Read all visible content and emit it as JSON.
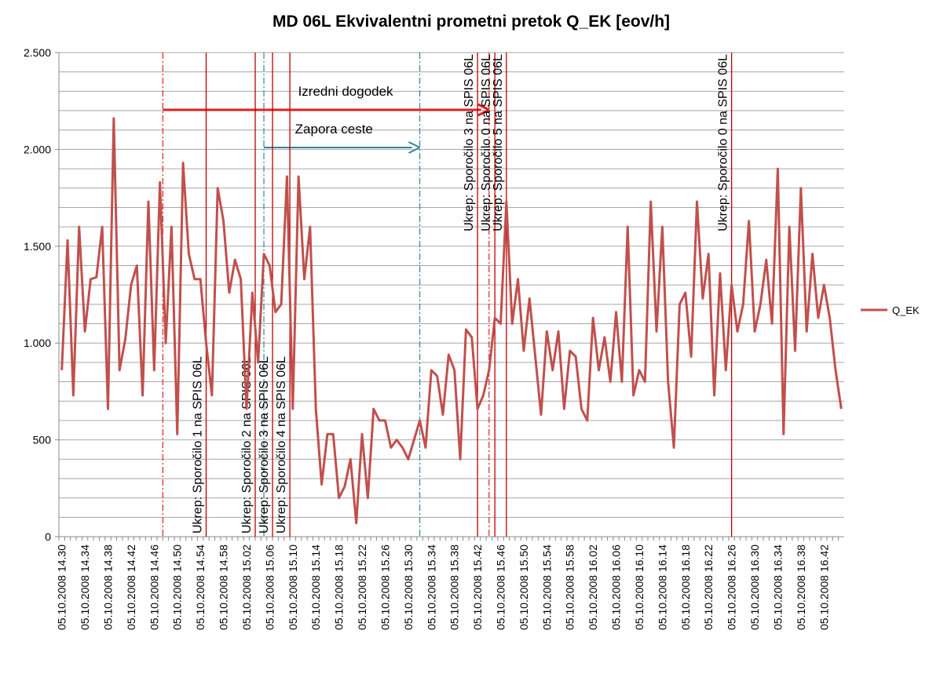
{
  "chart_data": {
    "type": "line",
    "title": "MD 06L Ekvivalentni prometni pretok Q_EK [eov/h]",
    "categories": [
      "05.10.2008 14.30",
      null,
      null,
      null,
      "05.10.2008 14.34",
      null,
      null,
      null,
      "05.10.2008 14.38",
      null,
      null,
      null,
      "05.10.2008 14.42",
      null,
      null,
      null,
      "05.10.2008 14.46",
      null,
      null,
      null,
      "05.10.2008 14.50",
      null,
      null,
      null,
      "05.10.2008 14.54",
      null,
      null,
      null,
      "05.10.2008 14.58",
      null,
      null,
      null,
      "05.10.2008 15.02",
      null,
      null,
      null,
      "05.10.2008 15.06",
      null,
      null,
      null,
      "05.10.2008 15.10",
      null,
      null,
      null,
      "05.10.2008 15.14",
      null,
      null,
      null,
      "05.10.2008 15.18",
      null,
      null,
      null,
      "05.10.2008 15.22",
      null,
      null,
      null,
      "05.10.2008 15.26",
      null,
      null,
      null,
      "05.10.2008 15.30",
      null,
      null,
      null,
      "05.10.2008 15.34",
      null,
      null,
      null,
      "05.10.2008 15.38",
      null,
      null,
      null,
      "05.10.2008 15.42",
      null,
      null,
      null,
      "05.10.2008 15.46",
      null,
      null,
      null,
      "05.10.2008 15.50",
      null,
      null,
      null,
      "05.10.2008 15.54",
      null,
      null,
      null,
      "05.10.2008 15.58",
      null,
      null,
      null,
      "05.10.2008 16.02",
      null,
      null,
      null,
      "05.10.2008 16.06",
      null,
      null,
      null,
      "05.10.2008 16.10",
      null,
      null,
      null,
      "05.10.2008 16.14",
      null,
      null,
      null,
      "05.10.2008 16.18",
      null,
      null,
      null,
      "05.10.2008 16.22",
      null,
      null,
      null,
      "05.10.2008 16.26",
      null,
      null,
      null,
      "05.10.2008 16.30",
      null,
      null,
      null,
      "05.10.2008 16.34",
      null,
      null,
      null,
      "05.10.2008 16.38",
      null,
      null,
      null,
      "05.10.2008 16.42",
      null,
      null,
      null
    ],
    "series": [
      {
        "name": "Q_EK",
        "color": "#c0504d",
        "values": [
          860,
          1530,
          730,
          1600,
          1060,
          1330,
          1340,
          1600,
          660,
          2160,
          860,
          1020,
          1300,
          1400,
          730,
          1730,
          860,
          1830,
          1000,
          1600,
          530,
          1930,
          1460,
          1330,
          1330,
          1000,
          730,
          1800,
          1630,
          1260,
          1430,
          1330,
          660,
          1260,
          900,
          1460,
          1400,
          1160,
          1200,
          1860,
          660,
          1860,
          1330,
          1600,
          660,
          270,
          530,
          530,
          200,
          260,
          400,
          70,
          530,
          200,
          660,
          600,
          600,
          460,
          500,
          460,
          400,
          500,
          600,
          460,
          860,
          830,
          630,
          940,
          860,
          400,
          1070,
          1030,
          660,
          730,
          860,
          1130,
          1100,
          1730,
          1100,
          1330,
          960,
          1230,
          930,
          630,
          1060,
          860,
          1060,
          660,
          960,
          930,
          660,
          600,
          1130,
          860,
          1030,
          800,
          1160,
          800,
          1600,
          730,
          860,
          800,
          1730,
          1060,
          1600,
          800,
          460,
          1200,
          1260,
          930,
          1730,
          1230,
          1460,
          730,
          1360,
          860,
          1300,
          1060,
          1200,
          1630,
          1060,
          1200,
          1430,
          1100,
          1900,
          530,
          1600,
          960,
          1800,
          1060,
          1460,
          1130,
          1300,
          1130,
          860,
          660
        ]
      }
    ],
    "ylim": [
      0,
      2500
    ],
    "yticks": [
      0,
      500,
      {
        "value": 1000,
        "label": "1.000"
      },
      {
        "value": 1500,
        "label": "1.500"
      },
      {
        "value": 2000,
        "label": "2.000"
      },
      {
        "value": 2500,
        "label": "2.500"
      }
    ],
    "ygrid": [
      0,
      100,
      200,
      300,
      400,
      500,
      600,
      700,
      800,
      900,
      1000,
      1100,
      1200,
      1300,
      1400,
      1500,
      1600,
      1700,
      1800,
      1900,
      2000,
      2100,
      2200,
      2300,
      2400,
      2500
    ],
    "legend": "right",
    "events": [
      {
        "label": "Ukrep: Sporočilo 1 na SPIS 06L",
        "x": 25,
        "label_position": "bottom"
      },
      {
        "label": "Ukrep: Sporočilo 2 na SPIS 06L",
        "x": 33.5,
        "label_position": "bottom"
      },
      {
        "label": "Ukrep: Sporočilo 3 na SPIS 06L",
        "x": 36.5,
        "label_position": "bottom"
      },
      {
        "label": "Ukrep: Sporočilo 4 na SPIS 06L",
        "x": 39.5,
        "label_position": "bottom"
      },
      {
        "label": "Ukrep: Sporočilo 3 na SPIS 06L",
        "x": 72,
        "label_position": "top"
      },
      {
        "label": "Ukrep: Sporočilo 0 na SPIS 06L",
        "x": 75,
        "label_position": "top"
      },
      {
        "label": "Ukrep: Sporočilo 5 na SPIS 06L",
        "x": 77,
        "label_position": "top"
      },
      {
        "label": "Ukrep: Sporočilo 0 na SPIS 06L",
        "x": 116,
        "label_position": "top"
      }
    ],
    "ranges": [
      {
        "label": "Izredni dogodek",
        "start": 17.5,
        "end": 74,
        "color": "#e02020"
      },
      {
        "label": "Zapora ceste",
        "start": 35,
        "end": 62,
        "color": "#31859c"
      }
    ]
  }
}
